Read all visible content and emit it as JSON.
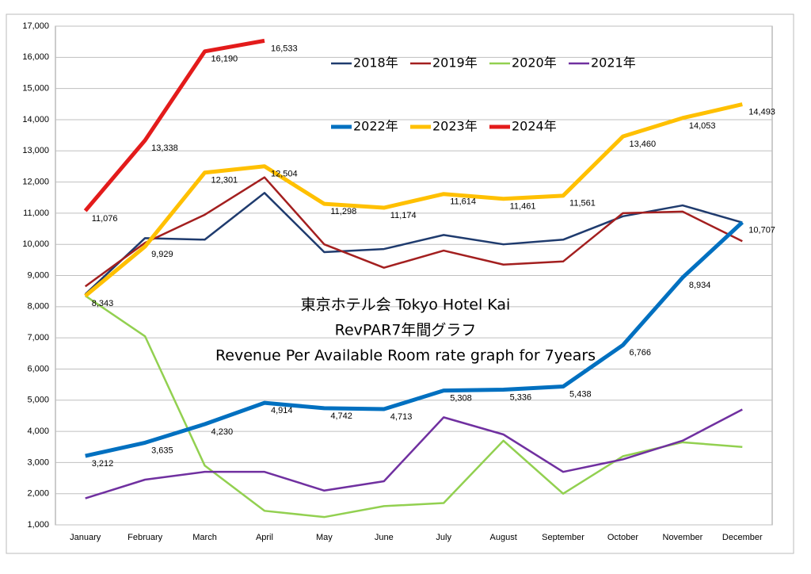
{
  "chart_data": {
    "type": "line",
    "title": [
      "東京ホテル会  Tokyo Hotel Kai",
      "RevPAR7年間グラフ",
      "Revenue Per Available Room rate graph for 7years"
    ],
    "categories": [
      "January",
      "February",
      "March",
      "April",
      "May",
      "June",
      "July",
      "August",
      "September",
      "October",
      "November",
      "December"
    ],
    "ylim": [
      1000,
      17000
    ],
    "yticks": [
      {
        "value": 1000,
        "label": "1,000"
      },
      {
        "value": 2000,
        "label": "2,000"
      },
      {
        "value": 3000,
        "label": "3,000"
      },
      {
        "value": 4000,
        "label": "4,000"
      },
      {
        "value": 5000,
        "label": "5,000"
      },
      {
        "value": 6000,
        "label": "6,000"
      },
      {
        "value": 7000,
        "label": "7,000"
      },
      {
        "value": 8000,
        "label": "8,000"
      },
      {
        "value": 9000,
        "label": "9,000"
      },
      {
        "value": 10000,
        "label": "10,000"
      },
      {
        "value": 11000,
        "label": "11,000"
      },
      {
        "value": 12000,
        "label": "12,000"
      },
      {
        "value": 13000,
        "label": "13,000"
      },
      {
        "value": 14000,
        "label": "14,000"
      },
      {
        "value": 15000,
        "label": "15,000"
      },
      {
        "value": 16000,
        "label": "16,000"
      },
      {
        "value": 17000,
        "label": "17,000"
      }
    ],
    "grid": true,
    "series": [
      {
        "name": "2018年",
        "color": "#1f3b6e",
        "line_width": 2.5,
        "values": [
          8400,
          10200,
          10150,
          11650,
          9750,
          9850,
          10300,
          10000,
          10150,
          10900,
          11250,
          10700
        ]
      },
      {
        "name": "2019年",
        "color": "#a31f1f",
        "line_width": 2.5,
        "values": [
          8650,
          10050,
          10950,
          12150,
          10000,
          9250,
          9800,
          9350,
          9450,
          11000,
          11050,
          10100
        ]
      },
      {
        "name": "2020年",
        "color": "#92d050",
        "line_width": 2.5,
        "values": [
          8350,
          7050,
          2900,
          1450,
          1250,
          1600,
          1700,
          3700,
          2000,
          3200,
          3650,
          3500
        ]
      },
      {
        "name": "2021年",
        "color": "#7030a0",
        "line_width": 2.5,
        "values": [
          1850,
          2450,
          2700,
          2700,
          2100,
          2400,
          4450,
          3900,
          2700,
          3100,
          3700,
          4700
        ]
      },
      {
        "name": "2022年",
        "color": "#0070c0",
        "line_width": 5,
        "values": [
          3212,
          3635,
          4230,
          4914,
          4742,
          4713,
          5308,
          5336,
          5438,
          6766,
          8934,
          10707
        ],
        "value_labels": [
          "3,212",
          "3,635",
          "4,230",
          "4,914",
          "4,742",
          "4,713",
          "5,308",
          "5,336",
          "5,438",
          "6,766",
          "8,934",
          "10,707"
        ]
      },
      {
        "name": "2023年",
        "color": "#ffc000",
        "line_width": 5,
        "values": [
          8343,
          9929,
          12301,
          12504,
          11298,
          11174,
          11614,
          11461,
          11561,
          13460,
          14053,
          14493
        ],
        "value_labels": [
          "8,343",
          "9,929",
          "12,301",
          "12,504",
          "11,298",
          "11,174",
          "11,614",
          "11,461",
          "11,561",
          "13,460",
          "14,053",
          "14,493"
        ]
      },
      {
        "name": "2024年",
        "color": "#e31b1b",
        "line_width": 5,
        "values": [
          11076,
          13338,
          16190,
          16533,
          null,
          null,
          null,
          null,
          null,
          null,
          null,
          null
        ],
        "value_labels": [
          "11,076",
          "13,338",
          "16,190",
          "16,533",
          null,
          null,
          null,
          null,
          null,
          null,
          null,
          null
        ]
      }
    ]
  }
}
